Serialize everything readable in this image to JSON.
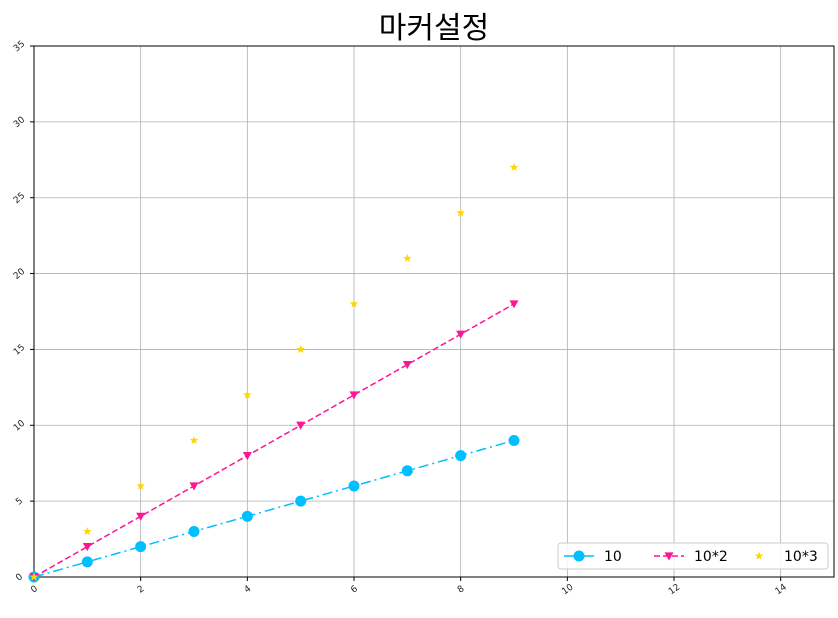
{
  "chart_data": {
    "type": "line",
    "title": "마커설정",
    "xlabel": "",
    "ylabel": "",
    "xlim": [
      0,
      15
    ],
    "ylim": [
      0,
      35
    ],
    "x_ticks": [
      0,
      2,
      4,
      6,
      8,
      10,
      12,
      14
    ],
    "y_ticks": [
      0,
      5,
      10,
      15,
      20,
      25,
      30,
      35
    ],
    "grid": true,
    "legend_position": "bottom-right",
    "x": [
      0,
      1,
      2,
      3,
      4,
      5,
      6,
      7,
      8,
      9
    ],
    "series": [
      {
        "name": "10",
        "values": [
          0,
          1,
          2,
          3,
          4,
          5,
          6,
          7,
          8,
          9
        ],
        "color": "#00bfff",
        "line_style": "dashdot",
        "marker": "circle"
      },
      {
        "name": "10*2",
        "values": [
          0,
          2,
          4,
          6,
          8,
          10,
          12,
          14,
          16,
          18
        ],
        "color": "#ff1493",
        "line_style": "dashed",
        "marker": "triangle-down"
      },
      {
        "name": "10*3",
        "values": [
          0,
          3,
          6,
          9,
          12,
          15,
          18,
          21,
          24,
          27
        ],
        "color": "#ffd700",
        "line_style": "none",
        "marker": "star"
      }
    ]
  }
}
